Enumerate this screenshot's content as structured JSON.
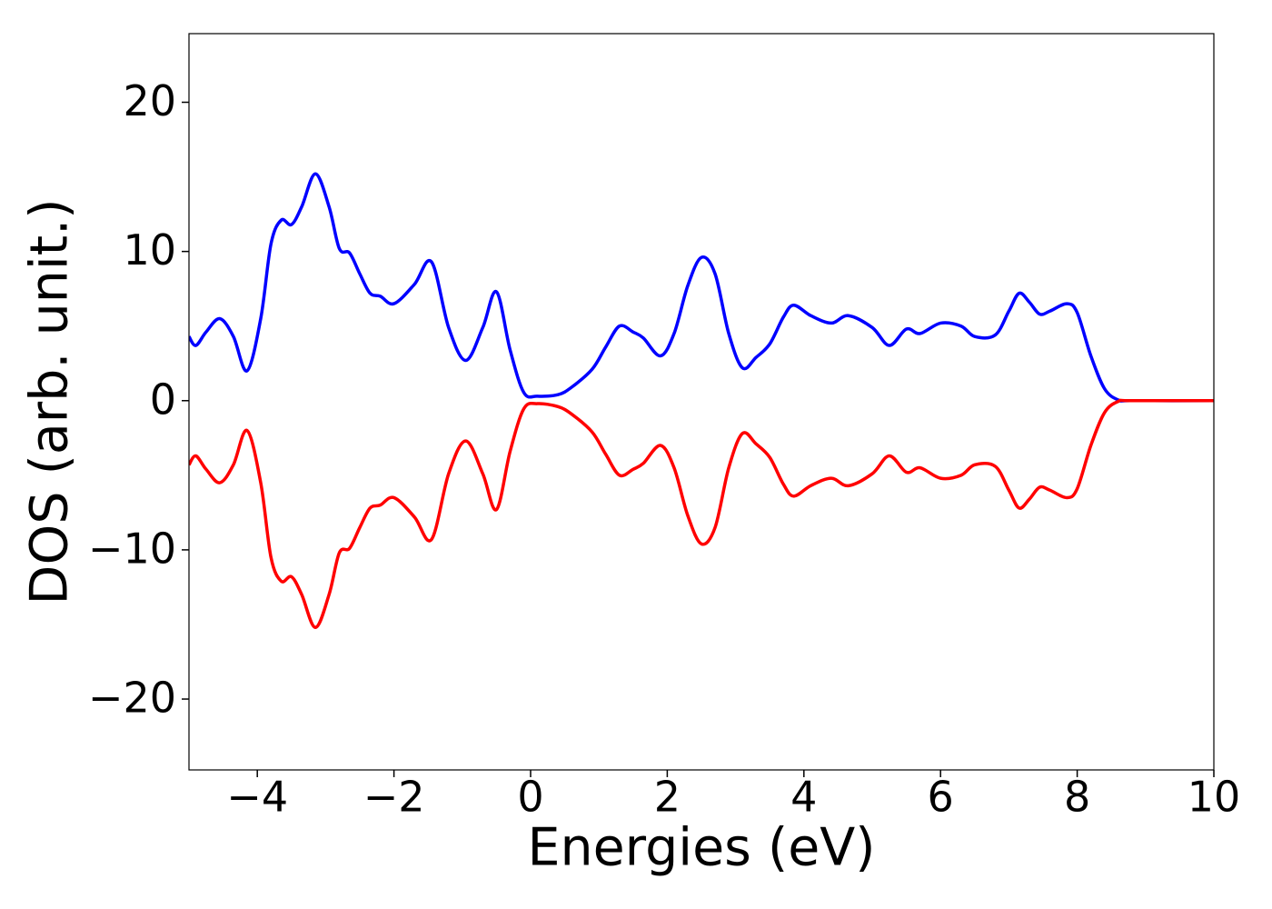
{
  "chart_data": {
    "type": "line",
    "xlabel": "Energies (eV)",
    "ylabel": "DOS (arb. unit.)",
    "x": [
      -5,
      -4.9,
      -4.75,
      -4.55,
      -4.35,
      -4.15,
      -3.95,
      -3.8,
      -3.65,
      -3.5,
      -3.35,
      -3.15,
      -2.95,
      -2.8,
      -2.65,
      -2.5,
      -2.35,
      -2.2,
      -2.0,
      -1.7,
      -1.45,
      -1.2,
      -0.95,
      -0.7,
      -0.5,
      -0.3,
      -0.1,
      0.1,
      0.4,
      0.6,
      0.9,
      1.1,
      1.3,
      1.5,
      1.65,
      1.9,
      2.1,
      2.3,
      2.5,
      2.7,
      2.9,
      3.1,
      3.3,
      3.5,
      3.7,
      3.85,
      4.1,
      4.4,
      4.65,
      5.0,
      5.25,
      5.5,
      5.7,
      6.0,
      6.3,
      6.5,
      6.8,
      7.0,
      7.15,
      7.3,
      7.45,
      7.6,
      7.85,
      8.0,
      8.2,
      8.4,
      8.6,
      8.8,
      10
    ],
    "series": [
      {
        "color": "#0000ff",
        "values": [
          4.3,
          3.7,
          4.6,
          5.5,
          4.3,
          2.0,
          5.5,
          10.5,
          12.1,
          11.8,
          13.0,
          15.2,
          13.0,
          10.2,
          9.9,
          8.5,
          7.2,
          7.0,
          6.5,
          7.8,
          9.3,
          4.9,
          2.7,
          4.9,
          7.3,
          3.4,
          0.55,
          0.3,
          0.4,
          0.9,
          2.1,
          3.6,
          5.0,
          4.6,
          4.2,
          3.0,
          4.5,
          7.7,
          9.6,
          8.5,
          4.5,
          2.2,
          2.9,
          3.8,
          5.6,
          6.4,
          5.7,
          5.2,
          5.7,
          4.9,
          3.7,
          4.8,
          4.5,
          5.2,
          5.0,
          4.3,
          4.4,
          6.0,
          7.2,
          6.6,
          5.8,
          6.0,
          6.5,
          5.9,
          3.0,
          0.8,
          0.05,
          0,
          0
        ]
      },
      {
        "color": "#ff0000",
        "values": [
          -4.3,
          -3.7,
          -4.6,
          -5.5,
          -4.3,
          -2.0,
          -5.5,
          -10.5,
          -12.1,
          -11.8,
          -13.0,
          -15.2,
          -13.0,
          -10.2,
          -9.9,
          -8.5,
          -7.2,
          -7.0,
          -6.5,
          -7.8,
          -9.3,
          -4.9,
          -2.7,
          -4.9,
          -7.3,
          -3.4,
          -0.55,
          -0.2,
          -0.4,
          -0.9,
          -2.1,
          -3.6,
          -5.0,
          -4.6,
          -4.2,
          -3.0,
          -4.5,
          -7.7,
          -9.6,
          -8.5,
          -4.5,
          -2.2,
          -2.9,
          -3.8,
          -5.6,
          -6.4,
          -5.7,
          -5.2,
          -5.7,
          -4.9,
          -3.7,
          -4.8,
          -4.5,
          -5.2,
          -5.0,
          -4.3,
          -4.4,
          -6.0,
          -7.2,
          -6.6,
          -5.8,
          -6.0,
          -6.5,
          -5.9,
          -3.0,
          -0.8,
          -0.05,
          0,
          0
        ]
      }
    ],
    "xlim": [
      -5,
      10
    ],
    "xticks": [
      {
        "value": -4,
        "label": "−4"
      },
      {
        "value": -2,
        "label": "−2"
      },
      0,
      2,
      4,
      6,
      8,
      10
    ],
    "ylim": [
      -24.75,
      24.6
    ],
    "yticks": [
      {
        "value": -20,
        "label": "−20"
      },
      {
        "value": -10,
        "label": "−10"
      },
      0,
      10,
      20
    ],
    "grid": false
  }
}
